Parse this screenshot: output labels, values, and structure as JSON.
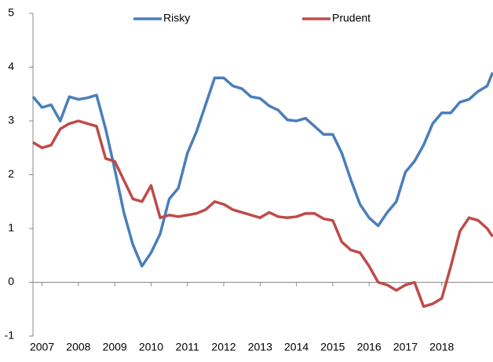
{
  "chart_data": {
    "type": "line",
    "x": [
      2006.75,
      2007.0,
      2007.25,
      2007.5,
      2007.75,
      2008.0,
      2008.25,
      2008.5,
      2008.75,
      2009.0,
      2009.25,
      2009.5,
      2009.75,
      2010.0,
      2010.25,
      2010.5,
      2010.75,
      2011.0,
      2011.25,
      2011.5,
      2011.75,
      2012.0,
      2012.25,
      2012.5,
      2012.75,
      2013.0,
      2013.25,
      2013.5,
      2013.75,
      2014.0,
      2014.25,
      2014.5,
      2014.75,
      2015.0,
      2015.25,
      2015.5,
      2015.75,
      2016.0,
      2016.25,
      2016.5,
      2016.75,
      2017.0,
      2017.25,
      2017.5,
      2017.75,
      2018.0,
      2018.25,
      2018.5,
      2018.75,
      2019.0,
      2019.25,
      2019.4
    ],
    "series": [
      {
        "name": "Risky",
        "color": "#4a7ebb",
        "values": [
          3.45,
          3.25,
          3.3,
          3.0,
          3.45,
          3.4,
          3.43,
          3.48,
          2.85,
          2.1,
          1.3,
          0.7,
          0.3,
          0.55,
          0.9,
          1.55,
          1.75,
          2.4,
          2.8,
          3.3,
          3.8,
          3.8,
          3.65,
          3.6,
          3.45,
          3.42,
          3.28,
          3.2,
          3.02,
          3.0,
          3.05,
          2.9,
          2.75,
          2.75,
          2.4,
          1.9,
          1.45,
          1.2,
          1.05,
          1.3,
          1.5,
          2.05,
          2.25,
          2.55,
          2.95,
          3.15,
          3.15,
          3.35,
          3.4,
          3.55,
          3.65,
          3.9
        ]
      },
      {
        "name": "Prudent",
        "color": "#be4b48",
        "values": [
          2.6,
          2.5,
          2.55,
          2.85,
          2.95,
          3.0,
          2.95,
          2.9,
          2.3,
          2.25,
          1.9,
          1.55,
          1.5,
          1.8,
          1.2,
          1.25,
          1.22,
          1.25,
          1.28,
          1.35,
          1.5,
          1.45,
          1.35,
          1.3,
          1.25,
          1.2,
          1.3,
          1.22,
          1.2,
          1.22,
          1.28,
          1.28,
          1.18,
          1.15,
          0.75,
          0.6,
          0.55,
          0.3,
          0.0,
          -0.05,
          -0.15,
          -0.05,
          0.0,
          -0.45,
          -0.4,
          -0.3,
          0.3,
          0.95,
          1.2,
          1.15,
          1.0,
          0.85
        ]
      }
    ],
    "xlim": [
      2006.75,
      2019.41
    ],
    "xticks": [
      2007,
      2008,
      2009,
      2010,
      2011,
      2012,
      2013,
      2014,
      2015,
      2016,
      2017,
      2018
    ],
    "ylim": [
      -1,
      5
    ],
    "yticks": [
      -1,
      0,
      1,
      2,
      3,
      4,
      5
    ],
    "grid": false,
    "legend": "top"
  }
}
